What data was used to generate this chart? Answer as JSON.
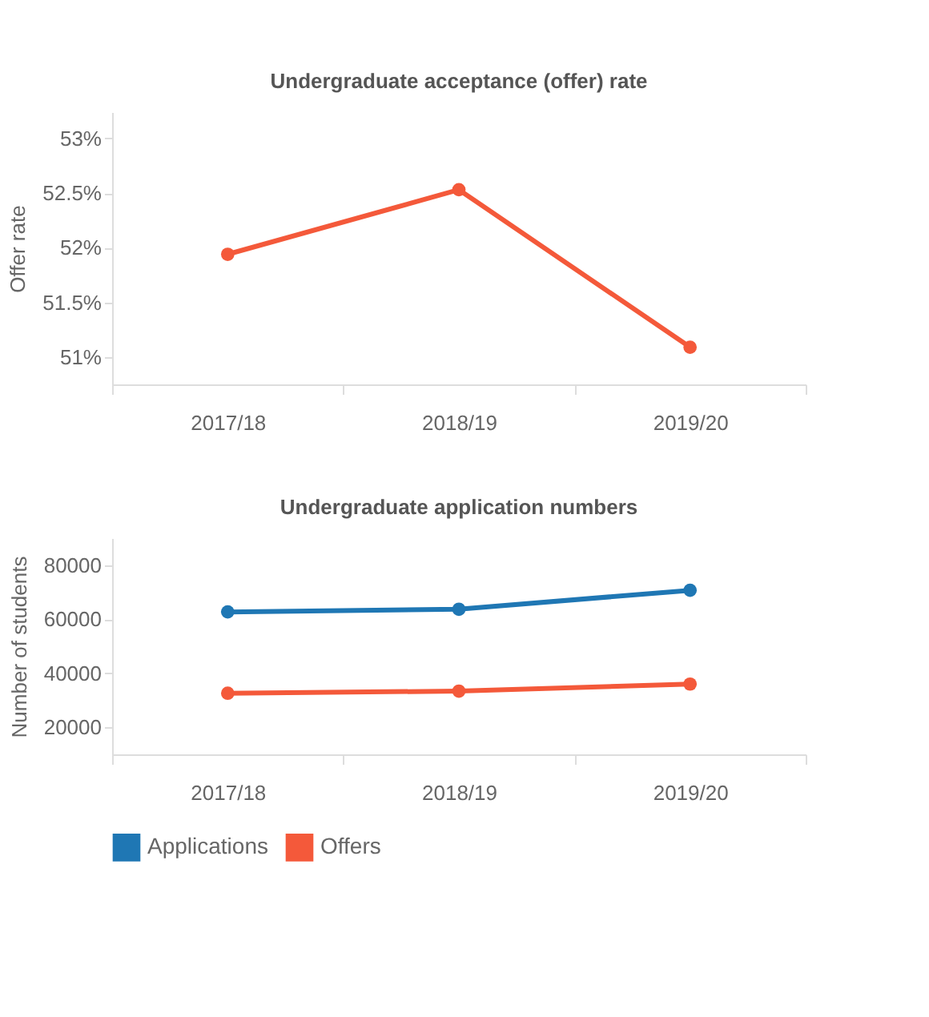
{
  "chart_data": [
    {
      "type": "line",
      "title": "Undergraduate acceptance (offer) rate",
      "ylabel": "Offer rate",
      "categories": [
        "2017/18",
        "2018/19",
        "2019/20"
      ],
      "series": [
        {
          "color": "#f4593a",
          "values": [
            51.94,
            52.53,
            51.09
          ]
        }
      ],
      "ylim": [
        50.75,
        53.24
      ],
      "yticks": [
        {
          "value": 51,
          "label": "51%"
        },
        {
          "value": 51.5,
          "label": "51.5%"
        },
        {
          "value": 52,
          "label": "52%"
        },
        {
          "value": 52.5,
          "label": "52.5%"
        },
        {
          "value": 53,
          "label": "53%"
        }
      ],
      "grid": false,
      "legend": false,
      "marker": "circle",
      "line_style": "solid"
    },
    {
      "type": "line",
      "title": "Undergraduate application numbers",
      "ylabel": "Number of students",
      "categories": [
        "2017/18",
        "2018/19",
        "2019/20"
      ],
      "series": [
        {
          "name": "Applications",
          "color": "#1f77b4",
          "values": [
            62700,
            63700,
            70700
          ]
        },
        {
          "name": "Offers",
          "color": "#f4593a",
          "values": [
            32600,
            33400,
            36000
          ]
        }
      ],
      "ylim": [
        10000,
        90000
      ],
      "yticks": [
        20000,
        40000,
        60000,
        80000
      ],
      "grid": false,
      "legend": "bottom",
      "marker": "circle",
      "line_style": "solid"
    }
  ]
}
